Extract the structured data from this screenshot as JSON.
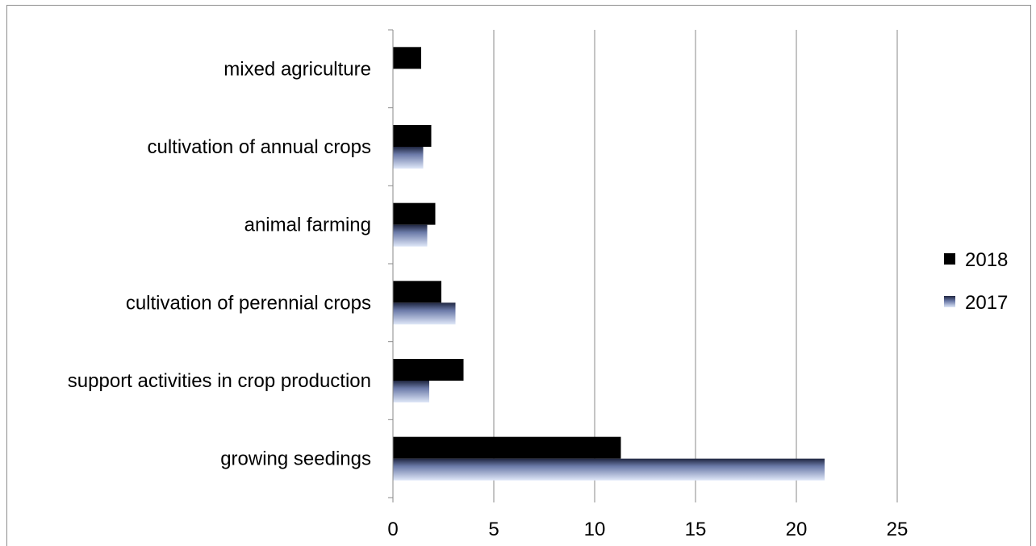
{
  "chart_data": {
    "type": "bar",
    "orientation": "horizontal",
    "categories": [
      "mixed agriculture",
      "cultivation of annual crops",
      "animal farming",
      "cultivation of perennial crops",
      "support activities in crop production",
      "growing seedings"
    ],
    "series": [
      {
        "name": "2018",
        "color": "#000000",
        "values": [
          1.4,
          1.9,
          2.1,
          2.4,
          3.5,
          11.3
        ]
      },
      {
        "name": "2017",
        "color": "#c7d3ee",
        "values": [
          0,
          1.5,
          1.7,
          3.1,
          1.8,
          21.4
        ]
      }
    ],
    "title": "",
    "xlabel": "",
    "ylabel": "",
    "xlim": [
      0,
      25
    ],
    "x_ticks": [
      "0",
      "5",
      "10",
      "15",
      "20",
      "25"
    ],
    "grid": "vertical major gridlines",
    "legend_position": "right"
  }
}
